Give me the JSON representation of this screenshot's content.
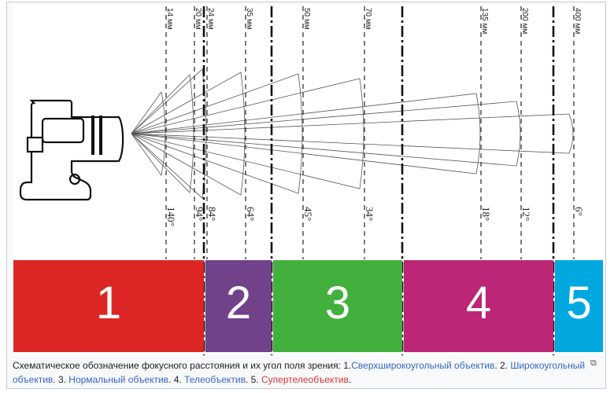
{
  "focal_lengths": [
    {
      "label": "14 мм",
      "angle": "140°"
    },
    {
      "label": "20 мм",
      "angle": "94°"
    },
    {
      "label": "24 мм",
      "angle": "84°"
    },
    {
      "label": "35 мм",
      "angle": "64°"
    },
    {
      "label": "50 мм",
      "angle": "45°"
    },
    {
      "label": "70 мм",
      "angle": "34°"
    },
    {
      "label": "135 мм",
      "angle": "18°"
    },
    {
      "label": "200 мм",
      "angle": "12°"
    },
    {
      "label": "400 мм",
      "angle": "6°"
    }
  ],
  "segments": [
    {
      "label": "1",
      "color": "#dc2626"
    },
    {
      "label": "2",
      "color": "#71428a"
    },
    {
      "label": "3",
      "color": "#43b03e"
    },
    {
      "label": "4",
      "color": "#bb2676"
    },
    {
      "label": "5",
      "color": "#00a8e0"
    }
  ],
  "caption": {
    "text1": "Схематическое обозначение фокусного расстояния и их угол поля зрения: 1.",
    "link1": "Сверхширокоугольный объектив",
    "text2": ". 2. ",
    "link2": "Широкоугольный объектив",
    "text3": ". 3. ",
    "link3": "Нормальный объектив",
    "text4": ". 4. ",
    "link4": "Телеобъектив",
    "text5": ". 5. ",
    "link5": "Супертелеобъектив",
    "text6": "."
  },
  "icons": {
    "camera": "camera-icon",
    "enlarge": "magnify-icon"
  }
}
